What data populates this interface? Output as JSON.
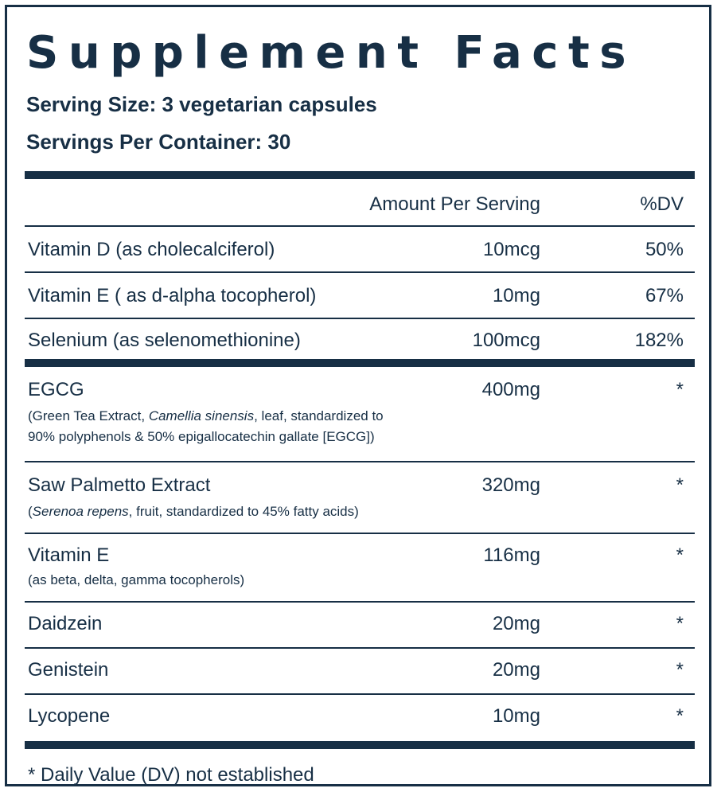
{
  "title": "Supplement Facts",
  "serving_size": "Serving Size: 3 vegetarian capsules",
  "servings_per_container": "Servings Per Container: 30",
  "header": {
    "amount": "Amount Per Serving",
    "dv": "%DV"
  },
  "rows": [
    {
      "name": "Vitamin D (as cholecalciferol)",
      "amount": "10mcg",
      "dv": "50%"
    },
    {
      "name": "Vitamin E ( as d-alpha tocopherol)",
      "amount": "10mg",
      "dv": "67%"
    },
    {
      "name": "Selenium (as selenomethionine)",
      "amount": "100mcg",
      "dv": "182%"
    },
    {
      "name": "EGCG",
      "amount": "400mg",
      "dv": "*",
      "detail_prefix": "(Green Tea Extract, ",
      "detail_italic": "Camellia sinensis",
      "detail_suffix": ", leaf, standardized to",
      "detail_line2": "90% polyphenols & 50% epigallocatechin gallate [EGCG])"
    },
    {
      "name": "Saw Palmetto Extract",
      "amount": "320mg",
      "dv": "*",
      "detail_prefix": "(",
      "detail_italic": "Serenoa repens",
      "detail_suffix": ", fruit, standardized to 45% fatty acids)"
    },
    {
      "name": "Vitamin E",
      "amount": "116mg",
      "dv": "*",
      "detail": "(as beta, delta, gamma tocopherols)"
    },
    {
      "name": "Daidzein",
      "amount": "20mg",
      "dv": "*"
    },
    {
      "name": "Genistein",
      "amount": "20mg",
      "dv": "*"
    },
    {
      "name": "Lycopene",
      "amount": "10mg",
      "dv": "*"
    }
  ],
  "footnote": "* Daily Value (DV) not established"
}
